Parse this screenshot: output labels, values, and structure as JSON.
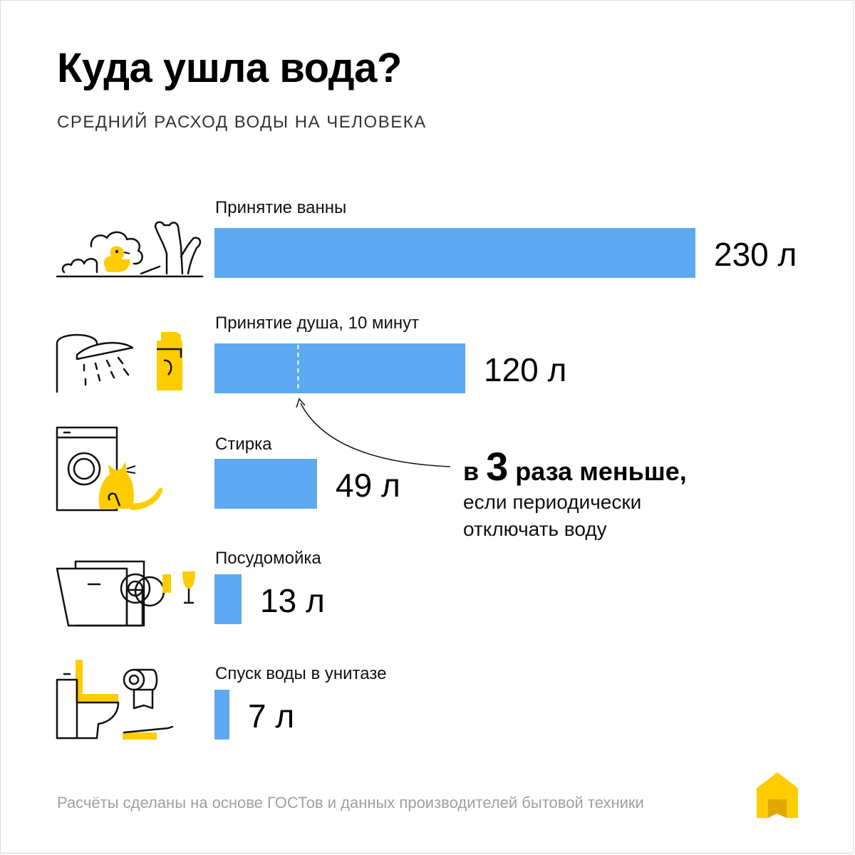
{
  "title": "Куда ушла вода?",
  "subtitle": "СРЕДНИЙ РАСХОД ВОДЫ НА ЧЕЛОВЕКА",
  "chart_data": {
    "type": "bar",
    "orientation": "horizontal",
    "title": "Куда ушла вода?",
    "subtitle": "СРЕДНИЙ РАСХОД ВОДЫ НА ЧЕЛОВЕКА",
    "unit": "л",
    "categories": [
      "Принятие ванны",
      "Принятие душа, 10 минут",
      "Стирка",
      "Посудомойка",
      "Спуск воды в унитазе"
    ],
    "values": [
      230,
      120,
      49,
      13,
      7
    ],
    "value_labels": [
      "230 л",
      "120 л",
      "49 л",
      "13 л",
      "7 л"
    ],
    "bar_color": "#5ea9f2",
    "xlim": [
      0,
      230
    ],
    "grid": false,
    "legend": "none",
    "annotation": {
      "target": "Принятие душа, 10 минут",
      "marker_value": 40,
      "big_prefix": "в ",
      "big_number": "3",
      "big_suffix": " раза меньше,",
      "small": "если периодически отключать воду"
    }
  },
  "footer": "Расчёты сделаны на основе ГОСТов и данных производителей бытовой техники",
  "icons": [
    "bathtub-icon",
    "shower-icon",
    "washing-machine-icon",
    "dishwasher-icon",
    "toilet-icon",
    "logo-icon"
  ],
  "colors": {
    "bar": "#5ea9f2",
    "accent": "#ffcc00",
    "text": "#000000",
    "footer": "#a0a0a0"
  }
}
